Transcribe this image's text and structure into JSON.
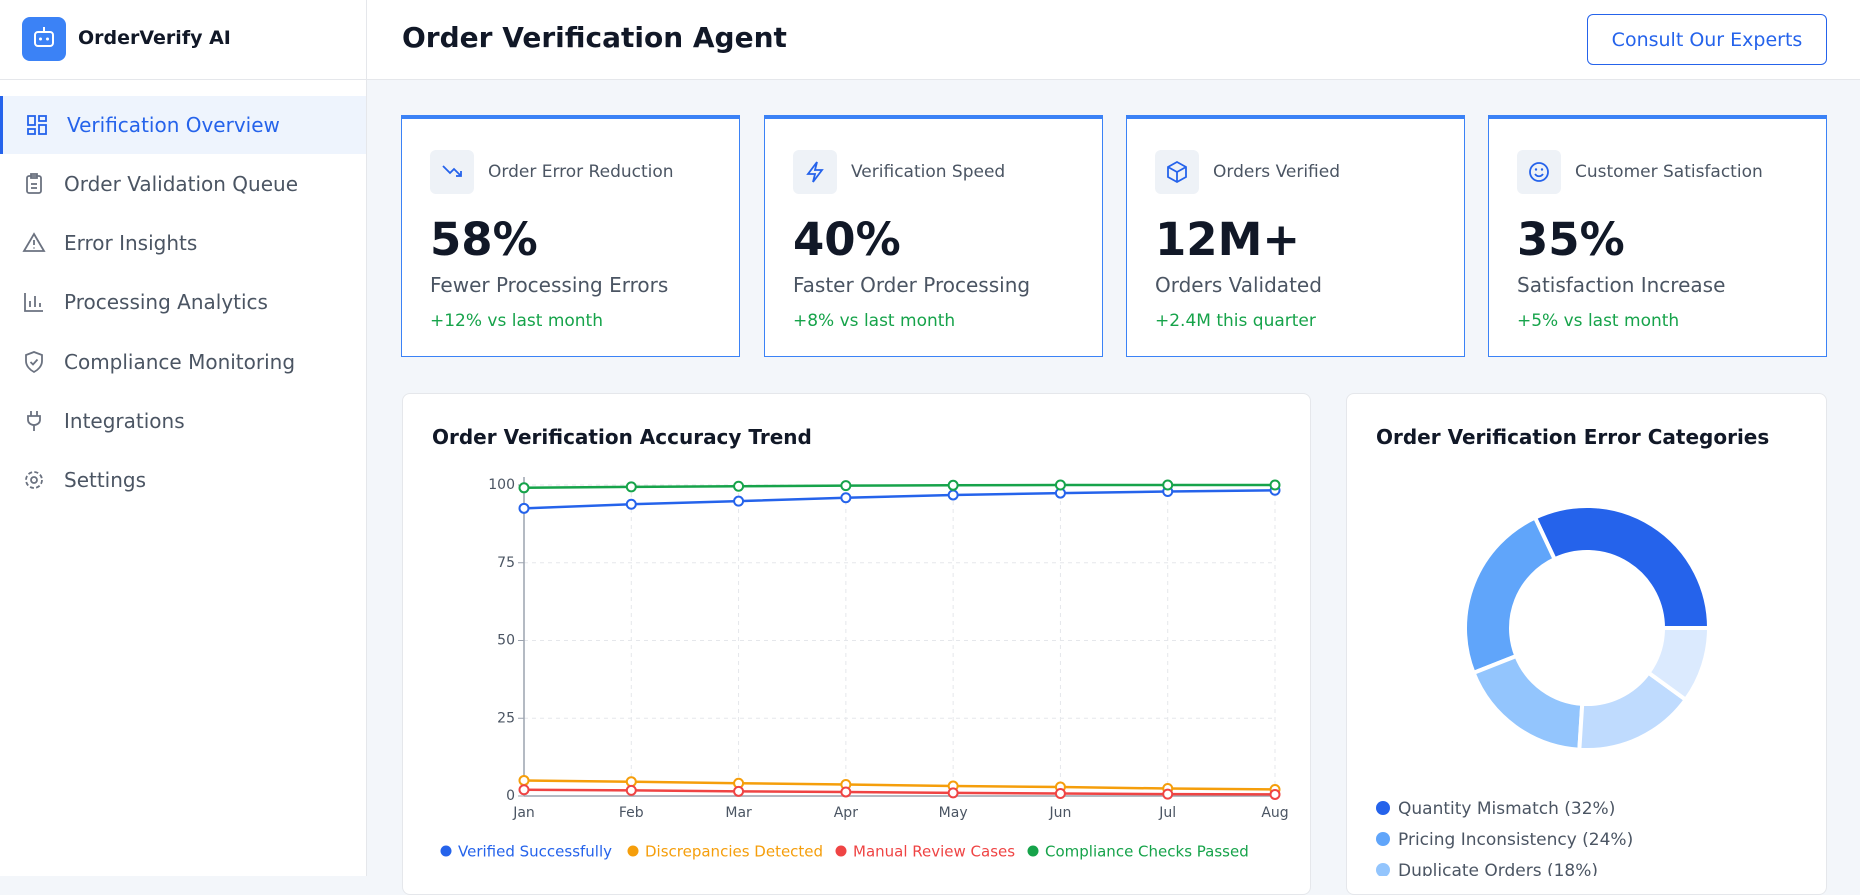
{
  "brand": "OrderVerify AI",
  "nav": [
    "Verification Overview",
    "Order Validation Queue",
    "Error Insights",
    "Processing Analytics",
    "Compliance Monitoring",
    "Integrations",
    "Settings"
  ],
  "header": {
    "title": "Order Verification Agent",
    "button": "Consult Our Experts"
  },
  "kpis": [
    {
      "label": "Order Error Reduction",
      "value": "58%",
      "caption": "Fewer Processing Errors",
      "change": "+12% vs last month"
    },
    {
      "label": "Verification Speed",
      "value": "40%",
      "caption": "Faster Order Processing",
      "change": "+8% vs last month"
    },
    {
      "label": "Orders Verified",
      "value": "12M+",
      "caption": "Orders Validated",
      "change": "+2.4M this quarter"
    },
    {
      "label": "Customer Satisfaction",
      "value": "35%",
      "caption": "Satisfaction Increase",
      "change": "+5% vs last month"
    }
  ],
  "chart_data": [
    {
      "type": "line",
      "title": "Order Verification Accuracy Trend",
      "categories": [
        "Jan",
        "Feb",
        "Mar",
        "Apr",
        "May",
        "Jun",
        "Jul",
        "Aug"
      ],
      "ylim": [
        0,
        100
      ],
      "yticks": [
        0,
        25,
        50,
        75,
        100
      ],
      "grid": true,
      "series": [
        {
          "name": "Verified Successfully",
          "color": "#2563eb",
          "values": [
            92.5,
            93.8,
            94.8,
            95.9,
            96.8,
            97.4,
            97.9,
            98.3
          ]
        },
        {
          "name": "Discrepancies Detected",
          "color": "#f59e0b",
          "values": [
            5,
            4.6,
            4.1,
            3.7,
            3.2,
            2.9,
            2.4,
            2.1
          ]
        },
        {
          "name": "Manual Review Cases",
          "color": "#ef4444",
          "values": [
            2,
            1.8,
            1.5,
            1.3,
            1,
            0.8,
            0.6,
            0.5
          ]
        },
        {
          "name": "Compliance Checks Passed",
          "color": "#16a34a",
          "values": [
            99.1,
            99.4,
            99.6,
            99.8,
            99.9,
            100,
            100,
            100
          ]
        }
      ]
    },
    {
      "type": "pie",
      "title": "Order Verification Error Categories",
      "categories": [
        "Quantity Mismatch (32%)",
        "Pricing Inconsistency (24%)",
        "Duplicate Orders (18%)",
        null,
        null
      ],
      "values": [
        32,
        24,
        18,
        16,
        10
      ],
      "colors": [
        "#2563eb",
        "#60a5fa",
        "#93c5fd",
        "#bfdbfe",
        "#dbeafe"
      ]
    }
  ]
}
